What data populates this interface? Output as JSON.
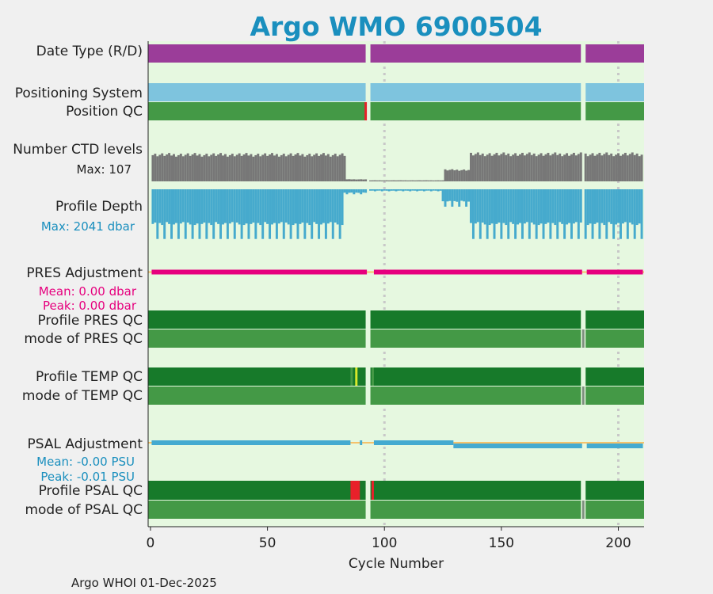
{
  "title": "Argo WMO 6900504",
  "footer": "Argo WHOI 01-Dec-2025",
  "colors": {
    "title": "#1a8fbe",
    "background": "#e6f8e0",
    "data_type": "#9b3d99",
    "positioning": "#7ec4de",
    "qc_dark": "#177a2a",
    "qc_mid": "#449946",
    "qc_gray": "#7f8f7f",
    "qc_bad": "#e8212a",
    "qc_yellow": "#d8e82a",
    "ctd": "#777777",
    "depth": "#46aacd",
    "pres_adj": "#e6007e",
    "psal_adj": "#44aad0",
    "zero_line": "#f5c26b",
    "grid": "#c8c8c8"
  },
  "labels": {
    "data_type": "Date Type (R/D)",
    "positioning_system": "Positioning System",
    "position_qc": "Position QC",
    "ctd_levels": "Number CTD levels",
    "ctd_max": "Max: 107",
    "profile_depth": "Profile Depth",
    "depth_max": "Max: 2041 dbar",
    "pres_adj": "PRES Adjustment",
    "pres_mean": "Mean: 0.00 dbar",
    "pres_peak": "Peak: 0.00 dbar",
    "profile_pres_qc": "Profile PRES QC",
    "mode_pres_qc": "mode of PRES QC",
    "profile_temp_qc": "Profile TEMP QC",
    "mode_temp_qc": "mode of TEMP QC",
    "psal_adj": "PSAL Adjustment",
    "psal_mean": "Mean: -0.00 PSU",
    "psal_peak": "Peak: -0.01 PSU",
    "profile_psal_qc": "Profile PSAL QC",
    "mode_psal_qc": "mode of PSAL QC"
  },
  "chart_data": {
    "type": "bar",
    "title": "Argo WMO 6900504",
    "xlabel": "Cycle Number",
    "ylabel": "",
    "xlim": [
      -1,
      211
    ],
    "xticks": [
      0,
      50,
      100,
      150,
      200
    ],
    "grid_x": [
      100,
      200
    ],
    "gaps": [
      93,
      185
    ],
    "ctd_max": 107,
    "depth_max_dbar": 2041,
    "pres_adjustment_dbar": {
      "mean": 0.0,
      "peak": 0.0
    },
    "psal_adjustment_psu": {
      "mean": -0.0,
      "peak": -0.01,
      "shift_from_cycle": 130,
      "shifted_value": -0.01
    },
    "position_qc_bad_cycles": [
      92
    ],
    "temp_qc_flags": [
      {
        "cycle": 86,
        "flag": "bad-mid"
      },
      {
        "cycle": 88,
        "flag": "yellow"
      },
      {
        "cycle": 95,
        "flag": "bad-mid"
      }
    ],
    "psal_qc_flags": [
      {
        "cycles": [
          86,
          89
        ],
        "flag": "bad"
      },
      {
        "cycle": 95,
        "flag": "bad"
      }
    ],
    "ctd_levels_segments": [
      {
        "from": 1,
        "to": 83,
        "level": 105
      },
      {
        "from": 84,
        "to": 92,
        "level": 8
      },
      {
        "from": 93,
        "to": 125,
        "level": 4
      },
      {
        "from": 126,
        "to": 136,
        "level": 45
      },
      {
        "from": 137,
        "to": 210,
        "level": 107
      }
    ],
    "profile_depth_segments": [
      {
        "from": 1,
        "to": 82,
        "level": 2000
      },
      {
        "from": 83,
        "to": 92,
        "level": 200
      },
      {
        "from": 93,
        "to": 124,
        "level": 80
      },
      {
        "from": 125,
        "to": 136,
        "level": 700
      },
      {
        "from": 137,
        "to": 210,
        "level": 2000
      }
    ]
  }
}
